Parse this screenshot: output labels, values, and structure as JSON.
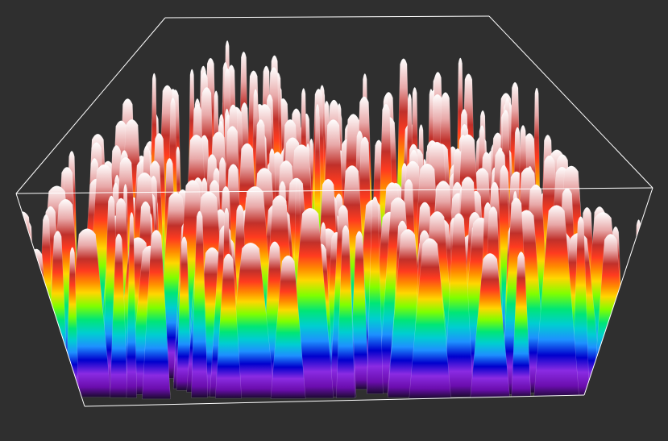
{
  "scene": {
    "background": "#2f2f2f",
    "frame_color": "#ffffff",
    "colormap": [
      "#1a0a2e",
      "#6a0dad",
      "#8a2be2",
      "#0000cd",
      "#1e90ff",
      "#00ced1",
      "#00e676",
      "#7fff00",
      "#ffd700",
      "#ff8c00",
      "#ff3b1f",
      "#c0302a",
      "#e8a8a8",
      "#ffffff"
    ],
    "peak_count": 420,
    "surface": "random-height-field"
  }
}
